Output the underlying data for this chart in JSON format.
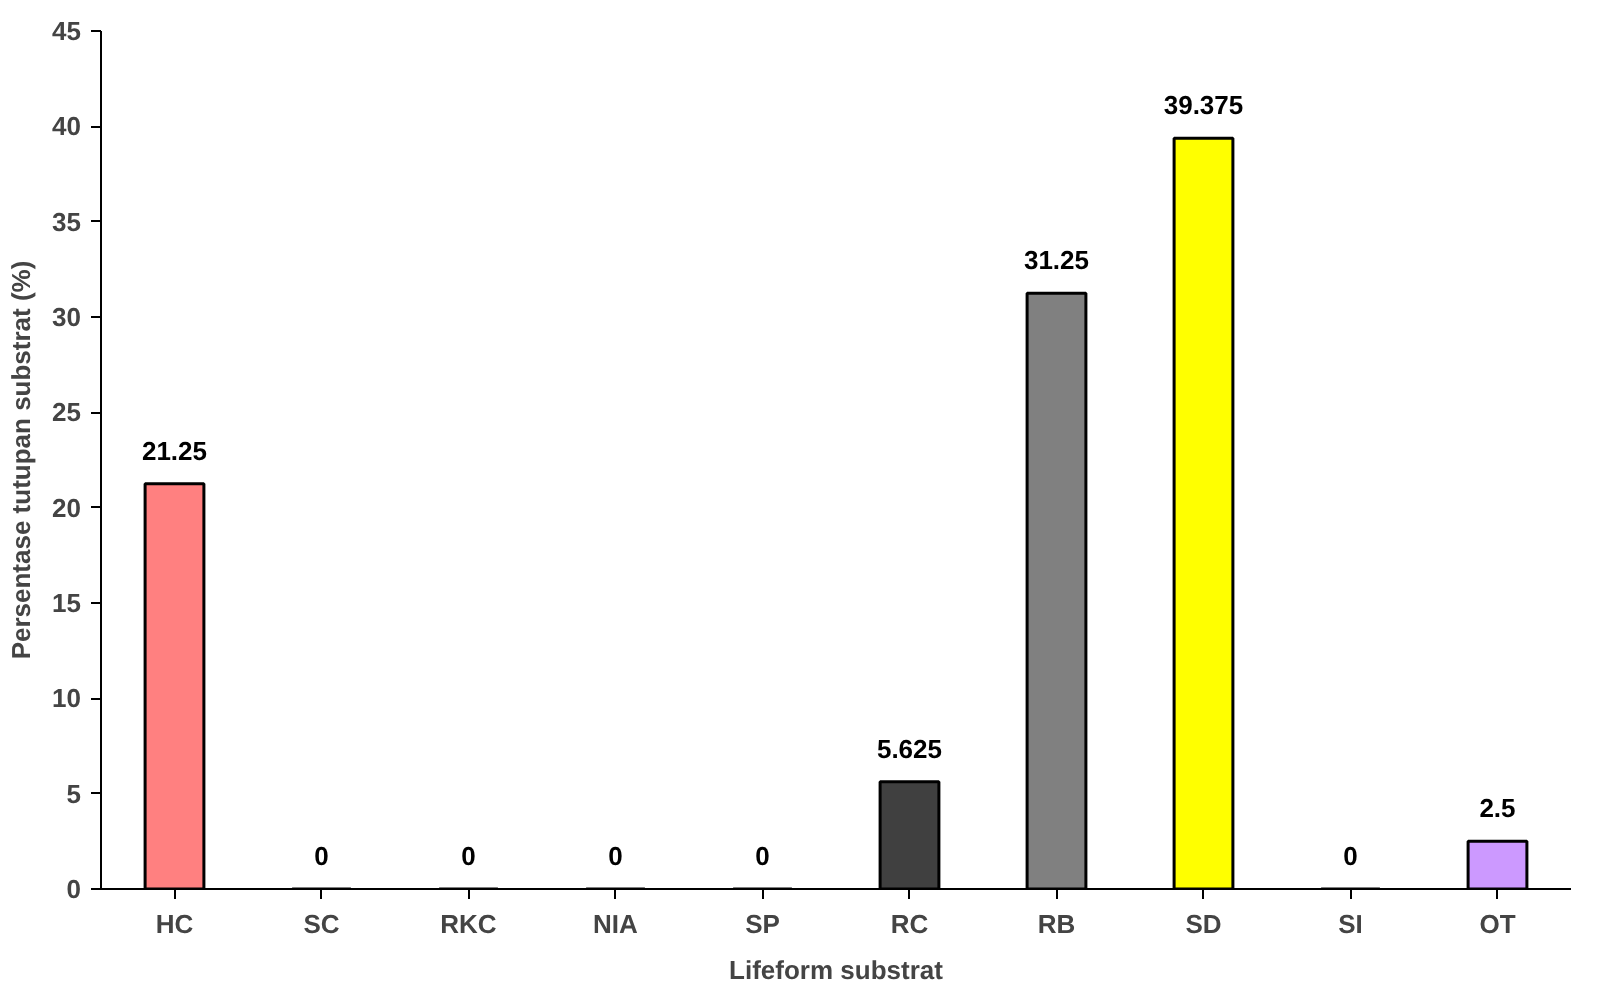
{
  "chart_data": {
    "type": "bar",
    "xlabel": "Lifeform substrat",
    "ylabel": "Persentase tutupan substrat (%)",
    "categories": [
      "HC",
      "SC",
      "RKC",
      "NIA",
      "SP",
      "RC",
      "RB",
      "SD",
      "SI",
      "OT"
    ],
    "values": [
      21.25,
      0,
      0,
      0,
      0,
      5.625,
      31.25,
      39.375,
      0,
      2.5
    ],
    "colors": [
      "#ff8080",
      "#000000",
      "#000000",
      "#000000",
      "#000000",
      "#404040",
      "#808080",
      "#ffff00",
      "#000000",
      "#cc99ff"
    ],
    "ylim": [
      0,
      45
    ],
    "yticks": [
      0,
      5,
      10,
      15,
      20,
      25,
      30,
      35,
      40,
      45
    ],
    "data_labels": true,
    "grid": false
  }
}
